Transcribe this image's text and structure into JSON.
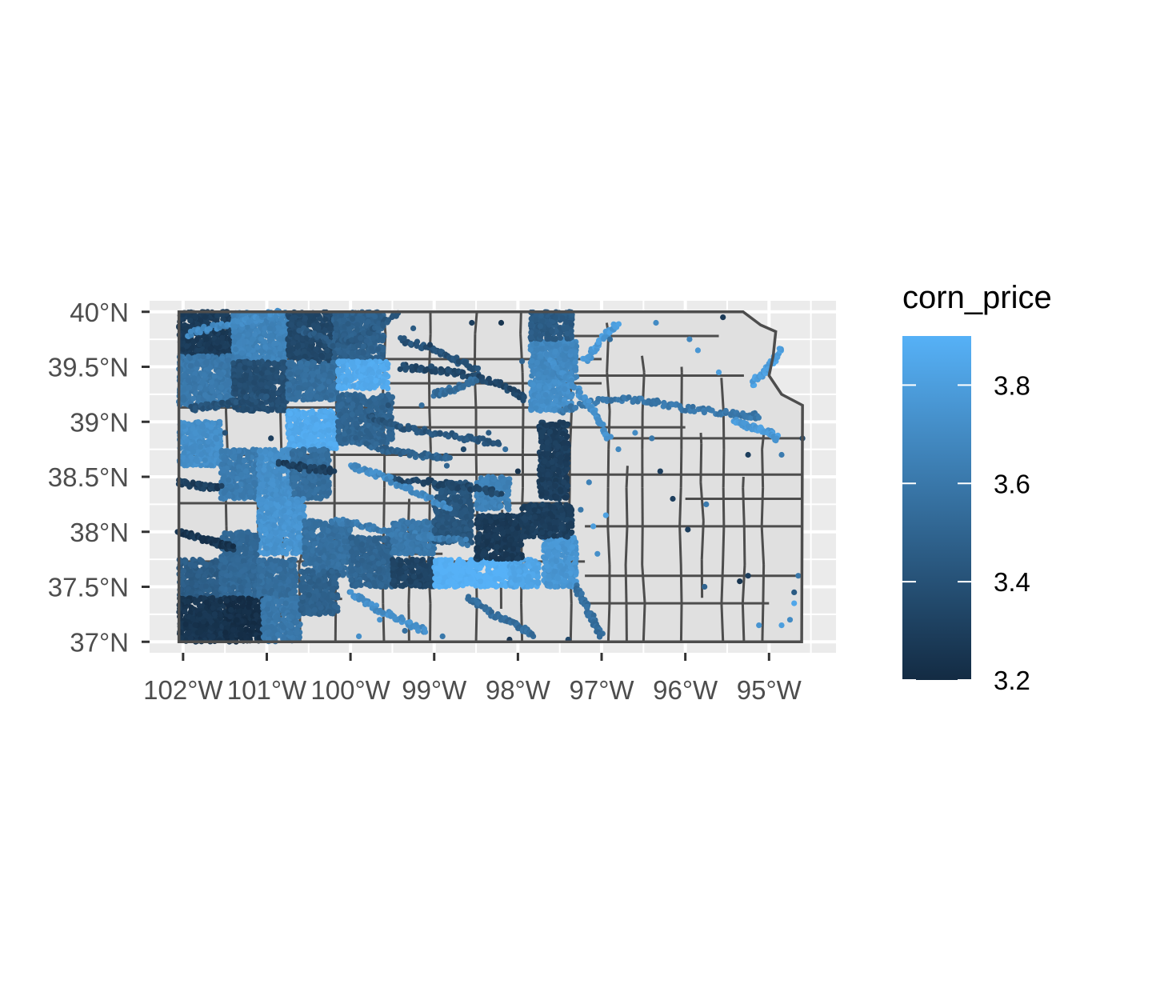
{
  "chart_data": {
    "type": "scatter",
    "title": "",
    "xlabel": "",
    "ylabel": "",
    "xlim": [
      -102.4,
      -94.2
    ],
    "ylim": [
      36.9,
      40.1
    ],
    "x_ticks": [
      -102,
      -101,
      -100,
      -99,
      -98,
      -97,
      -96,
      -95
    ],
    "x_tick_labels": [
      "102°W",
      "101°W",
      "100°W",
      "99°W",
      "98°W",
      "97°W",
      "96°W",
      "95°W"
    ],
    "y_ticks": [
      37,
      37.5,
      38,
      38.5,
      39,
      39.5,
      40
    ],
    "y_tick_labels": [
      "37°N",
      "37.5°N",
      "38°N",
      "38.5°N",
      "39°N",
      "39.5°N",
      "40°N"
    ],
    "grid": true,
    "legend": {
      "title": "corn_price",
      "placement": "right",
      "type": "colorbar",
      "min": 3.2,
      "max": 3.9,
      "breaks": [
        3.2,
        3.4,
        3.6,
        3.8
      ],
      "break_labels": [
        "3.2",
        "3.4",
        "3.6",
        "3.8"
      ],
      "low_color": "#132B43",
      "high_color": "#56B1F7"
    },
    "colors": {
      "panel_background": "#EBEBEB",
      "gridline": "#FFFFFF",
      "county_fill": "#E0E0E0",
      "county_border": "#4D4D4D",
      "tick_color": "#333333"
    },
    "regions": [
      {
        "x": [
          -102.05,
          -101.4
        ],
        "y": [
          39.6,
          40.0
        ],
        "price": 3.28
      },
      {
        "x": [
          -101.4,
          -100.75
        ],
        "y": [
          39.55,
          40.0
        ],
        "price": 3.66
      },
      {
        "x": [
          -100.75,
          -100.2
        ],
        "y": [
          39.55,
          40.0
        ],
        "price": 3.35
      },
      {
        "x": [
          -100.2,
          -99.6
        ],
        "y": [
          39.55,
          40.0
        ],
        "price": 3.48
      },
      {
        "x": [
          -102.05,
          -101.4
        ],
        "y": [
          39.15,
          39.6
        ],
        "price": 3.6
      },
      {
        "x": [
          -101.4,
          -100.75
        ],
        "y": [
          39.1,
          39.55
        ],
        "price": 3.38
      },
      {
        "x": [
          -100.75,
          -100.15
        ],
        "y": [
          39.2,
          39.55
        ],
        "price": 3.55
      },
      {
        "x": [
          -100.15,
          -99.55
        ],
        "y": [
          39.3,
          39.55
        ],
        "price": 3.86
      },
      {
        "x": [
          -100.75,
          -100.15
        ],
        "y": [
          38.75,
          39.1
        ],
        "price": 3.86
      },
      {
        "x": [
          -100.15,
          -99.5
        ],
        "y": [
          38.8,
          39.25
        ],
        "price": 3.5
      },
      {
        "x": [
          -102.05,
          -101.55
        ],
        "y": [
          38.6,
          39.0
        ],
        "price": 3.72
      },
      {
        "x": [
          -101.55,
          -101.1
        ],
        "y": [
          38.3,
          38.75
        ],
        "price": 3.62
      },
      {
        "x": [
          -101.1,
          -100.7
        ],
        "y": [
          38.3,
          38.75
        ],
        "price": 3.72
      },
      {
        "x": [
          -100.7,
          -100.25
        ],
        "y": [
          38.3,
          38.75
        ],
        "price": 3.55
      },
      {
        "x": [
          -101.1,
          -100.55
        ],
        "y": [
          37.8,
          38.3
        ],
        "price": 3.75
      },
      {
        "x": [
          -100.55,
          -100.0
        ],
        "y": [
          37.6,
          38.1
        ],
        "price": 3.56
      },
      {
        "x": [
          -101.55,
          -101.1
        ],
        "y": [
          37.5,
          38.0
        ],
        "price": 3.52
      },
      {
        "x": [
          -102.05,
          -101.55
        ],
        "y": [
          37.4,
          37.75
        ],
        "price": 3.46
      },
      {
        "x": [
          -101.55,
          -101.1
        ],
        "y": [
          37.4,
          37.75
        ],
        "price": 3.52
      },
      {
        "x": [
          -101.1,
          -100.65
        ],
        "y": [
          37.4,
          37.75
        ],
        "price": 3.55
      },
      {
        "x": [
          -102.05,
          -101.5
        ],
        "y": [
          37.0,
          37.4
        ],
        "price": 3.25
      },
      {
        "x": [
          -101.5,
          -101.05
        ],
        "y": [
          37.0,
          37.4
        ],
        "price": 3.22
      },
      {
        "x": [
          -101.05,
          -100.6
        ],
        "y": [
          37.0,
          37.4
        ],
        "price": 3.6
      },
      {
        "x": [
          -100.6,
          -100.15
        ],
        "y": [
          37.25,
          37.65
        ],
        "price": 3.48
      },
      {
        "x": [
          -100.0,
          -99.5
        ],
        "y": [
          37.5,
          37.95
        ],
        "price": 3.5
      },
      {
        "x": [
          -99.5,
          -99.0
        ],
        "y": [
          37.5,
          37.75
        ],
        "price": 3.33
      },
      {
        "x": [
          -99.5,
          -99.0
        ],
        "y": [
          37.8,
          38.1
        ],
        "price": 3.6
      },
      {
        "x": [
          -99.0,
          -98.55
        ],
        "y": [
          37.9,
          38.45
        ],
        "price": 3.42
      },
      {
        "x": [
          -99.0,
          -98.1
        ],
        "y": [
          37.5,
          37.75
        ],
        "price": 3.9
      },
      {
        "x": [
          -98.1,
          -97.75
        ],
        "y": [
          37.5,
          37.75
        ],
        "price": 3.84
      },
      {
        "x": [
          -98.5,
          -97.95
        ],
        "y": [
          37.75,
          38.15
        ],
        "price": 3.28
      },
      {
        "x": [
          -97.7,
          -97.3
        ],
        "y": [
          37.5,
          37.95
        ],
        "price": 3.76
      },
      {
        "x": [
          -98.5,
          -98.1
        ],
        "y": [
          38.2,
          38.5
        ],
        "price": 3.65
      },
      {
        "x": [
          -97.95,
          -97.35
        ],
        "y": [
          37.95,
          38.25
        ],
        "price": 3.3
      },
      {
        "x": [
          -97.75,
          -97.4
        ],
        "y": [
          38.3,
          39.0
        ],
        "price": 3.3
      },
      {
        "x": [
          -97.85,
          -97.35
        ],
        "y": [
          39.1,
          39.4
        ],
        "price": 3.72
      },
      {
        "x": [
          -97.85,
          -97.3
        ],
        "y": [
          39.4,
          39.75
        ],
        "price": 3.68
      },
      {
        "x": [
          -97.85,
          -97.35
        ],
        "y": [
          39.75,
          40.0
        ],
        "price": 3.45
      }
    ],
    "traces": [
      {
        "x": [
          -101.95,
          -101.55,
          -101.15,
          -100.8
        ],
        "y": [
          39.8,
          39.88,
          39.93,
          40.0
        ],
        "price": 3.7
      },
      {
        "x": [
          -100.6,
          -100.2,
          -99.8,
          -99.4
        ],
        "y": [
          39.85,
          39.7,
          39.8,
          40.0
        ],
        "price": 3.45
      },
      {
        "x": [
          -99.4,
          -99.0,
          -98.7,
          -98.45
        ],
        "y": [
          39.75,
          39.65,
          39.55,
          39.45
        ],
        "price": 3.4
      },
      {
        "x": [
          -99.4,
          -99.0,
          -98.6,
          -98.2,
          -97.9
        ],
        "y": [
          39.5,
          39.48,
          39.42,
          39.35,
          39.2
        ],
        "price": 3.35
      },
      {
        "x": [
          -99.8,
          -99.4,
          -99.0,
          -98.6,
          -98.2
        ],
        "y": [
          39.05,
          38.95,
          38.9,
          38.85,
          38.8
        ],
        "price": 3.42
      },
      {
        "x": [
          -100.0,
          -99.6,
          -99.2,
          -98.8
        ],
        "y": [
          38.85,
          38.75,
          38.7,
          38.68
        ],
        "price": 3.5
      },
      {
        "x": [
          -99.5,
          -99.0,
          -98.6,
          -98.2
        ],
        "y": [
          38.48,
          38.45,
          38.4,
          38.35
        ],
        "price": 3.35
      },
      {
        "x": [
          -100.0,
          -99.6,
          -99.2,
          -98.8
        ],
        "y": [
          38.6,
          38.5,
          38.35,
          38.2
        ],
        "price": 3.7
      },
      {
        "x": [
          -100.2,
          -99.8,
          -99.4,
          -99.0,
          -98.6
        ],
        "y": [
          38.1,
          38.05,
          37.98,
          37.95,
          37.9
        ],
        "price": 3.62
      },
      {
        "x": [
          -100.0,
          -99.7,
          -99.4,
          -99.1
        ],
        "y": [
          37.45,
          37.3,
          37.2,
          37.1
        ],
        "price": 3.72
      },
      {
        "x": [
          -98.6,
          -98.3,
          -98.0,
          -97.8
        ],
        "y": [
          37.4,
          37.25,
          37.15,
          37.05
        ],
        "price": 3.55
      },
      {
        "x": [
          -97.3,
          -97.2,
          -97.1,
          -97.0
        ],
        "y": [
          37.5,
          37.35,
          37.2,
          37.05
        ],
        "price": 3.55
      },
      {
        "x": [
          -97.5,
          -97.0,
          -96.5,
          -96.0,
          -95.5,
          -95.1
        ],
        "y": [
          39.1,
          39.2,
          39.2,
          39.12,
          39.08,
          39.05
        ],
        "price": 3.6
      },
      {
        "x": [
          -97.6,
          -97.3,
          -97.1,
          -96.9
        ],
        "y": [
          39.55,
          39.3,
          39.1,
          38.85
        ],
        "price": 3.72
      },
      {
        "x": [
          -95.4,
          -95.2,
          -95.0,
          -94.9
        ],
        "y": [
          39.0,
          38.95,
          38.9,
          38.85
        ],
        "price": 3.78
      },
      {
        "x": [
          -95.2,
          -95.0,
          -94.85
        ],
        "y": [
          39.35,
          39.5,
          39.65
        ],
        "price": 3.8
      },
      {
        "x": [
          -97.2,
          -97.0,
          -96.8
        ],
        "y": [
          39.55,
          39.75,
          39.9
        ],
        "price": 3.78
      },
      {
        "x": [
          -102.05,
          -101.8,
          -101.6,
          -101.4
        ],
        "y": [
          38.0,
          37.95,
          37.9,
          37.85
        ],
        "price": 3.25
      },
      {
        "x": [
          -102.05,
          -101.8,
          -101.55
        ],
        "y": [
          38.45,
          38.42,
          38.4
        ],
        "price": 3.3
      },
      {
        "x": [
          -101.9,
          -101.6,
          -101.3,
          -101.0
        ],
        "y": [
          39.12,
          39.15,
          39.2,
          39.25
        ],
        "price": 3.4
      },
      {
        "x": [
          -100.85,
          -100.5,
          -100.2
        ],
        "y": [
          38.62,
          38.58,
          38.55
        ],
        "price": 3.3
      },
      {
        "x": [
          -99.0,
          -98.75,
          -98.5
        ],
        "y": [
          39.25,
          39.3,
          39.38
        ],
        "price": 3.55
      }
    ],
    "scatter_points": [
      {
        "x": -96.6,
        "y": 38.9,
        "price": 3.7
      },
      {
        "x": -96.8,
        "y": 38.75,
        "price": 3.68
      },
      {
        "x": -96.4,
        "y": 38.85,
        "price": 3.6
      },
      {
        "x": -96.3,
        "y": 38.55,
        "price": 3.3
      },
      {
        "x": -96.15,
        "y": 38.3,
        "price": 3.3
      },
      {
        "x": -95.97,
        "y": 38.02,
        "price": 3.3
      },
      {
        "x": -95.75,
        "y": 38.25,
        "price": 3.62
      },
      {
        "x": -95.77,
        "y": 37.5,
        "price": 3.5
      },
      {
        "x": -95.35,
        "y": 37.55,
        "price": 3.25
      },
      {
        "x": -95.25,
        "y": 37.6,
        "price": 3.3
      },
      {
        "x": -95.12,
        "y": 37.15,
        "price": 3.75
      },
      {
        "x": -94.85,
        "y": 37.15,
        "price": 3.8
      },
      {
        "x": -94.7,
        "y": 37.35,
        "price": 3.85
      },
      {
        "x": -94.65,
        "y": 37.6,
        "price": 3.6
      },
      {
        "x": -94.7,
        "y": 37.45,
        "price": 3.45
      },
      {
        "x": -94.75,
        "y": 37.2,
        "price": 3.7
      },
      {
        "x": -95.25,
        "y": 38.7,
        "price": 3.3
      },
      {
        "x": -94.85,
        "y": 38.7,
        "price": 3.62
      },
      {
        "x": -94.6,
        "y": 38.85,
        "price": 3.35
      },
      {
        "x": -95.6,
        "y": 39.45,
        "price": 3.8
      },
      {
        "x": -95.95,
        "y": 39.75,
        "price": 3.68
      },
      {
        "x": -95.55,
        "y": 39.95,
        "price": 3.28
      },
      {
        "x": -95.85,
        "y": 39.65,
        "price": 3.76
      },
      {
        "x": -96.35,
        "y": 39.9,
        "price": 3.7
      },
      {
        "x": -96.9,
        "y": 39.75,
        "price": 3.55
      },
      {
        "x": -98.55,
        "y": 39.9,
        "price": 3.3
      },
      {
        "x": -98.2,
        "y": 39.9,
        "price": 3.25
      },
      {
        "x": -97.15,
        "y": 38.45,
        "price": 3.65
      },
      {
        "x": -97.1,
        "y": 38.05,
        "price": 3.8
      },
      {
        "x": -97.05,
        "y": 37.8,
        "price": 3.72
      },
      {
        "x": -97.25,
        "y": 38.2,
        "price": 3.6
      },
      {
        "x": -96.95,
        "y": 38.15,
        "price": 3.82
      },
      {
        "x": -98.1,
        "y": 37.02,
        "price": 3.28
      },
      {
        "x": -97.4,
        "y": 37.02,
        "price": 3.35
      },
      {
        "x": -98.9,
        "y": 37.05,
        "price": 3.6
      },
      {
        "x": -99.35,
        "y": 37.1,
        "price": 3.55
      },
      {
        "x": -99.65,
        "y": 37.2,
        "price": 3.75
      },
      {
        "x": -99.9,
        "y": 37.05,
        "price": 3.72
      },
      {
        "x": -98.65,
        "y": 38.75,
        "price": 3.35
      },
      {
        "x": -98.35,
        "y": 38.9,
        "price": 3.45
      },
      {
        "x": -98.15,
        "y": 38.75,
        "price": 3.55
      },
      {
        "x": -98.85,
        "y": 38.6,
        "price": 3.5
      },
      {
        "x": -98.0,
        "y": 38.55,
        "price": 3.25
      },
      {
        "x": -97.95,
        "y": 39.55,
        "price": 3.5
      },
      {
        "x": -99.25,
        "y": 39.85,
        "price": 3.45
      },
      {
        "x": -99.05,
        "y": 39.7,
        "price": 3.3
      },
      {
        "x": -100.15,
        "y": 39.0,
        "price": 3.5
      },
      {
        "x": -99.55,
        "y": 39.15,
        "price": 3.4
      },
      {
        "x": -99.15,
        "y": 39.15,
        "price": 3.55
      },
      {
        "x": -100.95,
        "y": 38.85,
        "price": 3.3
      },
      {
        "x": -101.5,
        "y": 38.9,
        "price": 3.4
      }
    ]
  }
}
